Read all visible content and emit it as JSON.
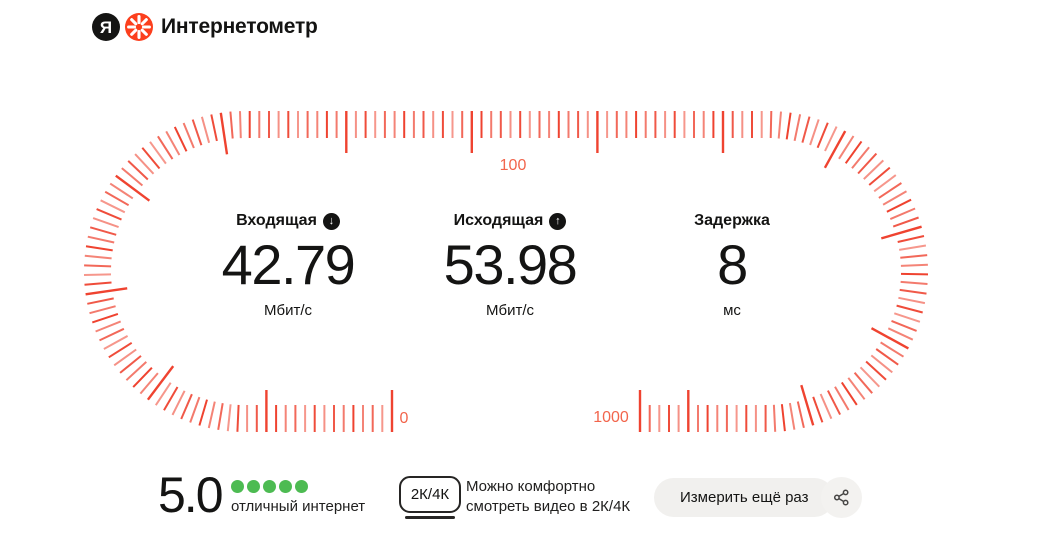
{
  "header": {
    "logo_letter": "Я",
    "title": "Интернетометр"
  },
  "gauge": {
    "label_min": "0",
    "label_mid": "100",
    "label_max": "1000",
    "tick_color": "#ef4330",
    "label_color": "#f2654c"
  },
  "metrics": [
    {
      "label": "Входящая",
      "icon": "arrow-down-circle",
      "icon_glyph": "↓",
      "value": "42.79",
      "unit": "Мбит/с"
    },
    {
      "label": "Исходящая",
      "icon": "arrow-up-circle",
      "icon_glyph": "↑",
      "value": "53.98",
      "unit": "Мбит/с"
    },
    {
      "label": "Задержка",
      "icon": "",
      "icon_glyph": "",
      "value": "8",
      "unit": "мс"
    }
  ],
  "rating": {
    "score": "5.0",
    "dots_count": 5,
    "dot_color": "#4dbb52",
    "label": "отличный интернет"
  },
  "quality": {
    "badge": "2К/4К",
    "line1": "Можно комфортно",
    "line2": "смотреть видео в 2К/4К"
  },
  "actions": {
    "measure_button": "Измерить ещё раз",
    "share_icon": "share-nodes"
  }
}
